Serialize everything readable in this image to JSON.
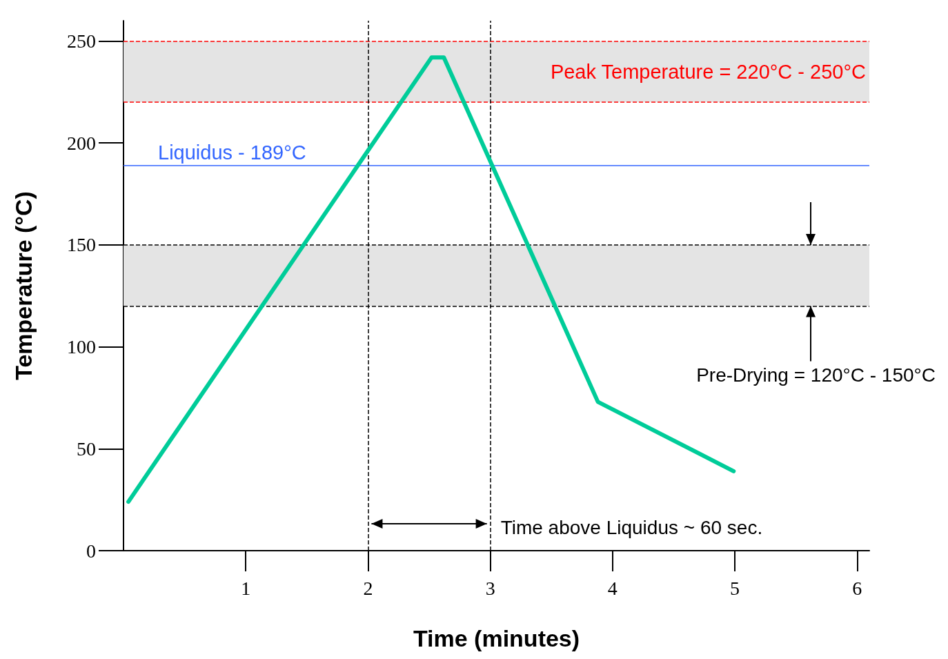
{
  "chart_data": {
    "type": "line",
    "xlabel": "Time (minutes)",
    "ylabel": "Temperature (°C)",
    "x": [
      0.04,
      2.52,
      2.62,
      3.88,
      4.99
    ],
    "series": [
      {
        "color": "#00cc99",
        "values": [
          24,
          242,
          242,
          73,
          39
        ]
      }
    ],
    "xlim": [
      0,
      6.1
    ],
    "xticks": [
      1,
      2,
      3,
      4,
      5,
      6
    ],
    "ylim": [
      0,
      260
    ],
    "yticks": [
      0,
      50,
      100,
      150,
      200,
      250
    ],
    "grid": false,
    "marker": "none",
    "line_style": "solid",
    "bands": [
      {
        "axis": "y",
        "from": 220,
        "to": 250,
        "label": "Peak Temperature = 220°C - 250°C",
        "color": "#e4e4e4"
      },
      {
        "axis": "y",
        "from": 120,
        "to": 150,
        "label": "Pre-Drying = 120°C - 150°C",
        "color": "#e4e4e4"
      }
    ],
    "ref_lines": [
      {
        "axis": "y",
        "value": 250,
        "color": "#ff0000",
        "line_style": "dashed"
      },
      {
        "axis": "y",
        "value": 220,
        "color": "#ff0000",
        "line_style": "dashed"
      },
      {
        "axis": "y",
        "value": 189,
        "label": "Liquidus - 189°C",
        "color": "#3366ff",
        "line_style": "solid"
      },
      {
        "axis": "y",
        "value": 150,
        "color": "#000000",
        "line_style": "dashed"
      },
      {
        "axis": "y",
        "value": 120,
        "color": "#000000",
        "line_style": "dashed"
      },
      {
        "axis": "x",
        "value": 2,
        "color": "#000000",
        "line_style": "dashed"
      },
      {
        "axis": "x",
        "value": 3,
        "color": "#000000",
        "line_style": "dashed"
      }
    ],
    "annotations": [
      "Time above Liquidus ~ 60 sec."
    ]
  }
}
